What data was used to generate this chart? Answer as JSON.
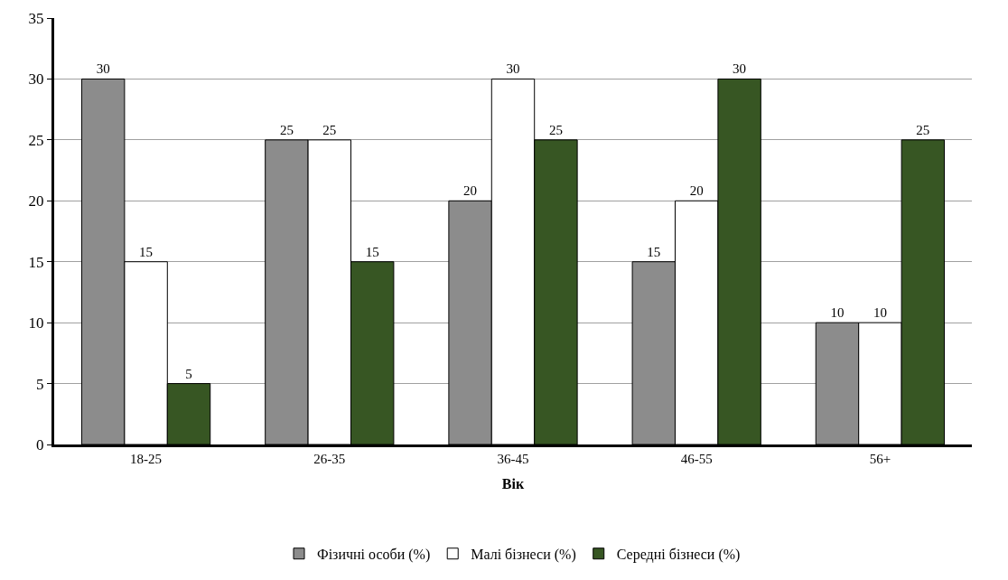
{
  "chart_data": {
    "type": "bar",
    "xlabel": "Вік",
    "categories": [
      "18-25",
      "26-35",
      "36-45",
      "46-55",
      "56+"
    ],
    "series": [
      {
        "name": "Фізичні особи (%)",
        "color": "#8c8c8c",
        "values": [
          30,
          25,
          20,
          15,
          10
        ]
      },
      {
        "name": "Малі бізнеси (%)",
        "color": "#ffffff",
        "values": [
          15,
          25,
          30,
          20,
          10
        ]
      },
      {
        "name": "Середні бізнеси (%)",
        "color": "#375623",
        "values": [
          5,
          15,
          25,
          30,
          25
        ]
      }
    ],
    "ylim": [
      0,
      35
    ],
    "yticks": [
      0,
      5,
      10,
      15,
      20,
      25,
      30,
      35
    ],
    "grid": "y",
    "legend": "bottom",
    "data_labels": true
  }
}
